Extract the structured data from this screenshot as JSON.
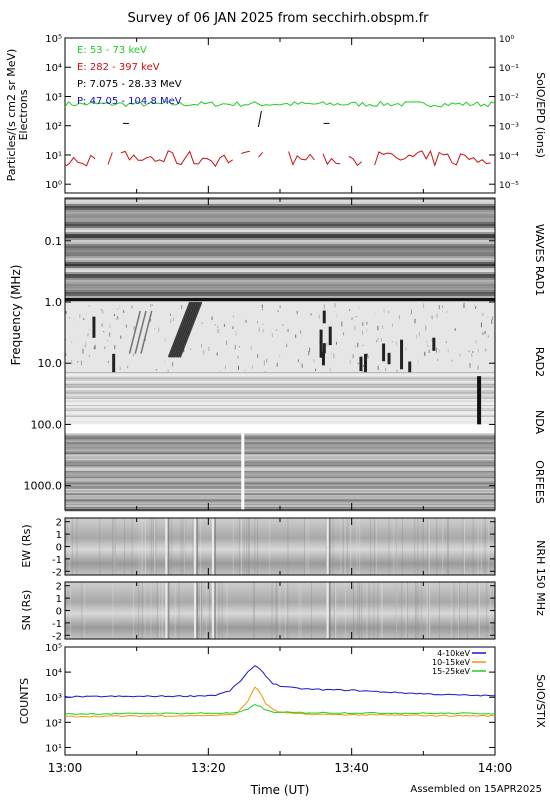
{
  "title": "Survey of 06 JAN 2025 from secchirh.obspm.fr",
  "footer": "Assembled on 15APR2025",
  "colors": {
    "green": "#22cc22",
    "red": "#cc1111",
    "black": "#000000",
    "blue": "#1111bb",
    "stix_blue": "#1515cc",
    "stix_orange": "#ee9900",
    "stix_green": "#22cc22"
  },
  "chart_data": [
    {
      "type": "line",
      "panel": "epd",
      "ylabel_left": [
        "Particles/(s cm2 sr MeV)",
        "Electrons"
      ],
      "ylabel_right": "SolO/EPD (ions)",
      "yscale": "log",
      "ylim_left": [
        0.5,
        100000
      ],
      "ylim_right": [
        5e-06,
        1
      ],
      "left_ticks": [
        {
          "v": 1,
          "label": "10⁰"
        },
        {
          "v": 10,
          "label": "10¹"
        },
        {
          "v": 100,
          "label": "10²"
        },
        {
          "v": 1000,
          "label": "10³"
        },
        {
          "v": 10000,
          "label": "10⁴"
        },
        {
          "v": 100000,
          "label": "10⁵"
        }
      ],
      "right_ticks": [
        {
          "v": 1e-05,
          "label": "10⁻⁵"
        },
        {
          "v": 0.0001,
          "label": "10⁻⁴"
        },
        {
          "v": 0.001,
          "label": "10⁻³"
        },
        {
          "v": 0.01,
          "label": "10⁻²"
        },
        {
          "v": 0.1,
          "label": "10⁻¹"
        },
        {
          "v": 1,
          "label": "10⁰"
        }
      ],
      "legend": [
        {
          "label": "E: 53 - 73 keV",
          "color": "#22cc22"
        },
        {
          "label": "E: 282 - 397 keV",
          "color": "#cc1111"
        },
        {
          "label": "P: 7.075 - 28.33 MeV",
          "color": "#000000"
        },
        {
          "label": "P: 47.05 - 104.8 MeV",
          "color": "#1111bb"
        }
      ],
      "series": [
        {
          "name": "E: 53 - 73 keV",
          "base": 550,
          "jitter": 0.09
        },
        {
          "name": "E: 282 - 397 keV",
          "min": 4,
          "max": 14
        },
        {
          "name": "P: 7.075 - 28.33 MeV",
          "x": [
            8.5,
            27.2,
            36.5
          ],
          "y": [
            0.0012,
            0.0017,
            0.0012
          ]
        }
      ]
    },
    {
      "type": "heatmap",
      "panel": "spectrogram",
      "ylabel": "Frequency (MHz)",
      "yscale": "log",
      "ylim": [
        0.02,
        2500
      ],
      "y_ticks": [
        {
          "v": 0.1,
          "label": "0.1"
        },
        {
          "v": 1,
          "label": "1.0"
        },
        {
          "v": 10,
          "label": "10.0"
        },
        {
          "v": 100,
          "label": "100.0"
        },
        {
          "v": 1000,
          "label": "1000.0"
        }
      ],
      "bands": [
        {
          "label": "WAVES RAD1",
          "f_top": 0.02,
          "f_bottom": 1
        },
        {
          "label": "RAD2",
          "f_top": 1,
          "f_bottom": 14
        },
        {
          "label": "NDA",
          "f_top": 14,
          "f_bottom": 100
        },
        {
          "label": "ORFEES",
          "f_top": 140,
          "f_bottom": 2500
        }
      ],
      "bursts": [
        {
          "t_start": 14.5,
          "t_end": 17.5,
          "f_high": 1.0,
          "f_low": 8.0
        }
      ]
    },
    {
      "type": "heatmap",
      "panel": "nrh",
      "right_label": "NRH 150 MHz",
      "subpanels": [
        {
          "ylabel": "EW (Rs)",
          "ylim": [
            -2.3,
            2.3
          ],
          "ticks": [
            2,
            1,
            0,
            -1,
            -2
          ]
        },
        {
          "ylabel": "SN (Rs)",
          "ylim": [
            -2.3,
            2.3
          ],
          "ticks": [
            2,
            1,
            0,
            -1,
            -2
          ]
        }
      ],
      "features_minutes": [
        14.0,
        18.0,
        20.5,
        36.5
      ]
    },
    {
      "type": "line",
      "panel": "stix",
      "ylabel": "COUNTS",
      "right_label": "SolO/STIX",
      "yscale": "log",
      "ylim": [
        5,
        100000
      ],
      "ticks": [
        {
          "v": 10,
          "label": "10¹"
        },
        {
          "v": 100,
          "label": "10²"
        },
        {
          "v": 1000,
          "label": "10³"
        },
        {
          "v": 10000,
          "label": "10⁴"
        },
        {
          "v": 100000,
          "label": "10⁵"
        }
      ],
      "series": [
        {
          "name": "4-10keV",
          "color": "#1515cc",
          "x": [
            0,
            3,
            6,
            10,
            14,
            18,
            21,
            23,
            24.5,
            25.5,
            26.5,
            27.3,
            28,
            29,
            30,
            32,
            34,
            36,
            40,
            44,
            48,
            52,
            56,
            60
          ],
          "y": [
            1050,
            1050,
            1080,
            1070,
            1100,
            1120,
            1200,
            1800,
            4500,
            10000,
            17000,
            13000,
            7000,
            3600,
            2800,
            2300,
            2100,
            2000,
            1900,
            1650,
            1450,
            1300,
            1200,
            1150
          ]
        },
        {
          "name": "10-15keV",
          "color": "#ee9900",
          "x": [
            0,
            6,
            12,
            18,
            22,
            24,
            25.5,
            26.5,
            27.3,
            28,
            29,
            30,
            32,
            36,
            44,
            52,
            60
          ],
          "y": [
            170,
            175,
            180,
            185,
            190,
            220,
            700,
            2600,
            1400,
            560,
            320,
            250,
            220,
            205,
            195,
            185,
            180
          ]
        },
        {
          "name": "15-25keV",
          "color": "#22cc22",
          "x": [
            0,
            6,
            12,
            18,
            22,
            24,
            25.5,
            26.5,
            27.3,
            28,
            29,
            30,
            32,
            36,
            44,
            52,
            60
          ],
          "y": [
            215,
            220,
            225,
            230,
            232,
            240,
            320,
            520,
            420,
            300,
            260,
            250,
            245,
            240,
            235,
            228,
            225
          ]
        }
      ]
    }
  ],
  "xaxis": {
    "label": "Time (UT)",
    "xlim_minutes": [
      0,
      60
    ],
    "ticks": [
      {
        "v": 0,
        "label": "13:00"
      },
      {
        "v": 20,
        "label": "13:20"
      },
      {
        "v": 40,
        "label": "13:40"
      },
      {
        "v": 60,
        "label": "14:00"
      }
    ]
  }
}
